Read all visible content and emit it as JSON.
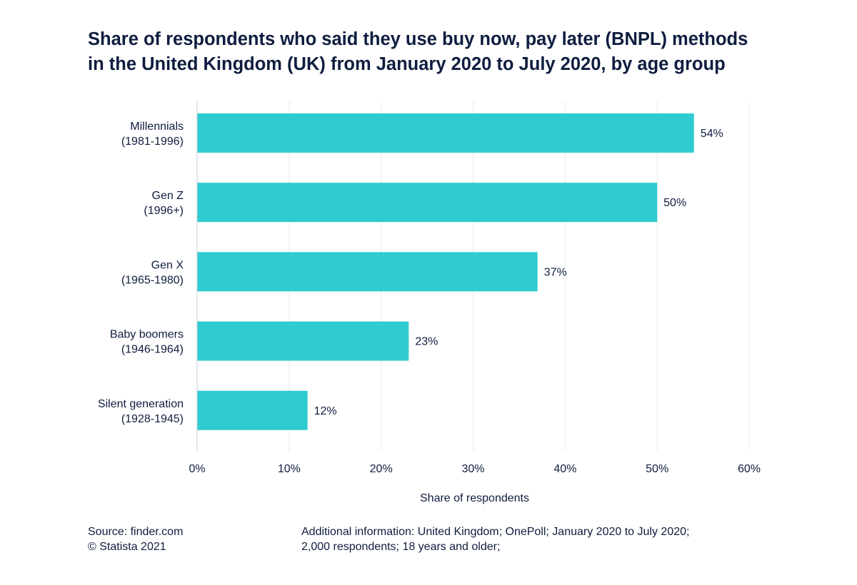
{
  "chart_data": {
    "type": "bar",
    "orientation": "horizontal",
    "title": [
      "Share of respondents who said they use buy now, pay later (BNPL) methods",
      "in the United Kingdom (UK) from January 2020 to July 2020, by age group"
    ],
    "categories": [
      [
        "Millennials",
        "(1981-1996)"
      ],
      [
        "Gen Z",
        "(1996+)"
      ],
      [
        "Gen X",
        "(1965-1980)"
      ],
      [
        "Baby boomers",
        "(1946-1964)"
      ],
      [
        "Silent generation",
        "(1928-1945)"
      ]
    ],
    "values": [
      54,
      50,
      37,
      23,
      12
    ],
    "value_labels": [
      "54%",
      "50%",
      "37%",
      "23%",
      "12%"
    ],
    "xlim": [
      0,
      60
    ],
    "xticks": [
      0,
      10,
      20,
      30,
      40,
      50,
      60
    ],
    "xtick_labels": [
      "0%",
      "10%",
      "20%",
      "30%",
      "40%",
      "50%",
      "60%"
    ],
    "xlabel": "Share of respondents",
    "ylabel": "",
    "grid": "vertical",
    "bar_color": "#2ecbd1"
  },
  "footer": {
    "source_lines": [
      "Source: finder.com",
      "© Statista 2021"
    ],
    "info_lines": [
      "Additional information: United Kingdom; OnePoll; January 2020 to July 2020;",
      "2,000 respondents; 18 years and older;"
    ]
  }
}
